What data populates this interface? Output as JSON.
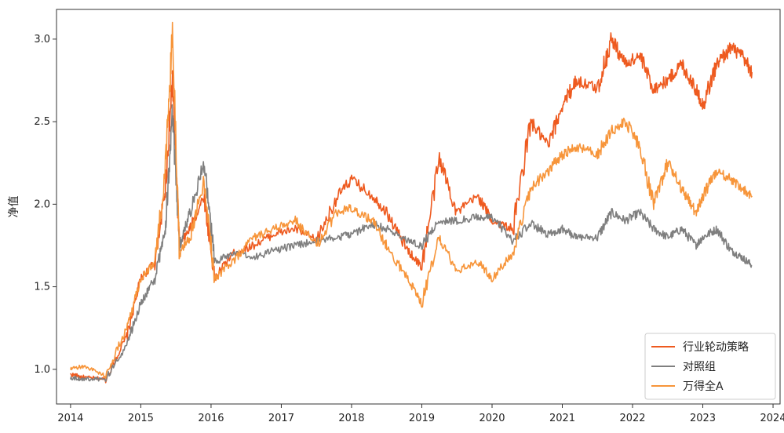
{
  "chart_data": {
    "type": "line",
    "title": "",
    "xlabel": "",
    "ylabel": "净值",
    "xlim": [
      2013.8,
      2024.1
    ],
    "ylim": [
      0.79,
      3.18
    ],
    "xticks": [
      "2014",
      "2015",
      "2016",
      "2017",
      "2018",
      "2019",
      "2020",
      "2021",
      "2022",
      "2023",
      "2024"
    ],
    "yticks": [
      "1.0",
      "1.5",
      "2.0",
      "2.5",
      "3.0"
    ],
    "legend": "lower-right",
    "grid": false,
    "series": [
      {
        "name": "行业轮动策略",
        "color": "#ee5a1f",
        "x": [
          2014.0,
          2014.2,
          2014.5,
          2014.8,
          2015.0,
          2015.2,
          2015.35,
          2015.45,
          2015.55,
          2015.7,
          2015.9,
          2016.05,
          2016.3,
          2016.6,
          2016.9,
          2017.2,
          2017.5,
          2017.8,
          2018.0,
          2018.3,
          2018.5,
          2018.8,
          2019.0,
          2019.25,
          2019.5,
          2019.8,
          2020.0,
          2020.3,
          2020.55,
          2020.8,
          2021.0,
          2021.2,
          2021.5,
          2021.7,
          2021.9,
          2022.1,
          2022.3,
          2022.5,
          2022.7,
          2022.9,
          2023.0,
          2023.2,
          2023.4,
          2023.55,
          2023.7
        ],
        "y": [
          0.97,
          0.95,
          0.94,
          1.2,
          1.55,
          1.65,
          2.1,
          2.75,
          1.75,
          1.85,
          2.05,
          1.55,
          1.7,
          1.75,
          1.82,
          1.85,
          1.78,
          2.05,
          2.15,
          2.05,
          1.95,
          1.72,
          1.62,
          2.28,
          1.95,
          2.05,
          1.9,
          1.85,
          2.5,
          2.35,
          2.6,
          2.75,
          2.7,
          3.0,
          2.85,
          2.9,
          2.7,
          2.75,
          2.85,
          2.7,
          2.6,
          2.85,
          2.95,
          2.9,
          2.8
        ]
      },
      {
        "name": "对照组",
        "color": "#7f7f7f",
        "x": [
          2014.0,
          2014.2,
          2014.5,
          2014.8,
          2015.0,
          2015.2,
          2015.35,
          2015.45,
          2015.55,
          2015.7,
          2015.9,
          2016.05,
          2016.3,
          2016.6,
          2016.9,
          2017.2,
          2017.5,
          2017.8,
          2018.0,
          2018.3,
          2018.5,
          2018.8,
          2019.0,
          2019.25,
          2019.5,
          2019.8,
          2020.0,
          2020.3,
          2020.55,
          2020.8,
          2021.0,
          2021.2,
          2021.5,
          2021.7,
          2021.9,
          2022.1,
          2022.3,
          2022.5,
          2022.7,
          2022.9,
          2023.0,
          2023.2,
          2023.4,
          2023.55,
          2023.7
        ],
        "y": [
          0.95,
          0.94,
          0.94,
          1.15,
          1.4,
          1.55,
          1.85,
          2.55,
          1.75,
          1.95,
          2.25,
          1.65,
          1.7,
          1.68,
          1.72,
          1.75,
          1.78,
          1.8,
          1.82,
          1.88,
          1.85,
          1.78,
          1.75,
          1.9,
          1.9,
          1.92,
          1.92,
          1.78,
          1.88,
          1.82,
          1.85,
          1.8,
          1.8,
          1.95,
          1.9,
          1.95,
          1.85,
          1.8,
          1.85,
          1.75,
          1.8,
          1.85,
          1.72,
          1.68,
          1.63
        ]
      },
      {
        "name": "万得全A",
        "color": "#f7953a",
        "x": [
          2014.0,
          2014.2,
          2014.5,
          2014.8,
          2015.0,
          2015.2,
          2015.35,
          2015.45,
          2015.55,
          2015.7,
          2015.9,
          2016.05,
          2016.3,
          2016.6,
          2016.9,
          2017.2,
          2017.5,
          2017.8,
          2018.0,
          2018.3,
          2018.5,
          2018.8,
          2019.0,
          2019.25,
          2019.5,
          2019.8,
          2020.0,
          2020.3,
          2020.55,
          2020.8,
          2021.0,
          2021.2,
          2021.5,
          2021.7,
          2021.9,
          2022.1,
          2022.3,
          2022.5,
          2022.7,
          2022.9,
          2023.0,
          2023.2,
          2023.4,
          2023.55,
          2023.7
        ],
        "y": [
          1.0,
          1.02,
          0.96,
          1.25,
          1.55,
          1.65,
          2.2,
          3.05,
          1.7,
          1.8,
          2.15,
          1.55,
          1.65,
          1.8,
          1.85,
          1.9,
          1.75,
          1.95,
          1.98,
          1.9,
          1.75,
          1.55,
          1.4,
          1.8,
          1.6,
          1.65,
          1.55,
          1.7,
          2.1,
          2.2,
          2.3,
          2.35,
          2.3,
          2.45,
          2.5,
          2.35,
          2.0,
          2.25,
          2.1,
          1.95,
          2.05,
          2.2,
          2.15,
          2.1,
          2.05
        ]
      }
    ]
  }
}
